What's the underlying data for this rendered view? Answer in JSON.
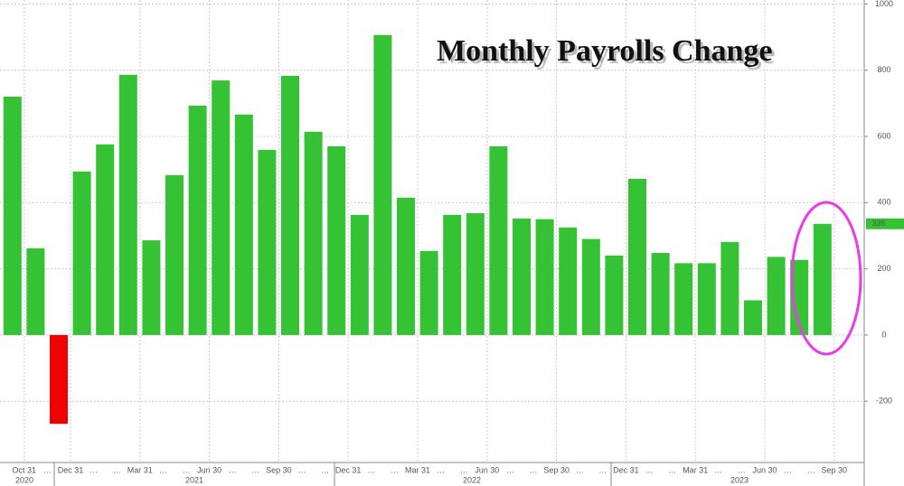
{
  "chart_data": {
    "type": "bar",
    "title": "Monthly Payrolls Change",
    "categories": [
      "Oct 31",
      null,
      "Dec 31",
      null,
      null,
      "Mar 31",
      null,
      null,
      "Jun 30",
      null,
      null,
      "Sep 30",
      null,
      null,
      "Dec 31",
      null,
      null,
      "Mar 31",
      null,
      null,
      "Jun 30",
      null,
      null,
      "Sep 30",
      null,
      null,
      "Dec 31",
      null,
      null,
      "Mar 31",
      null,
      null,
      "Jun 30",
      null,
      null,
      "Sep 30"
    ],
    "years": [
      "2020",
      "2021",
      "2022",
      "2023"
    ],
    "values": [
      720,
      262,
      -268,
      494,
      576,
      786,
      286,
      483,
      693,
      769,
      666,
      559,
      783,
      614,
      570,
      363,
      906,
      415,
      254,
      363,
      368,
      570,
      352,
      350,
      325,
      290,
      240,
      472,
      248,
      217,
      217,
      281,
      105,
      236,
      227,
      336
    ],
    "color": "#35c235",
    "negative_color": "#f00000",
    "ylim": [
      -385,
      1012
    ],
    "yticks": [
      -200,
      0,
      200,
      400,
      600,
      800,
      1000
    ],
    "grid": true
  }
}
